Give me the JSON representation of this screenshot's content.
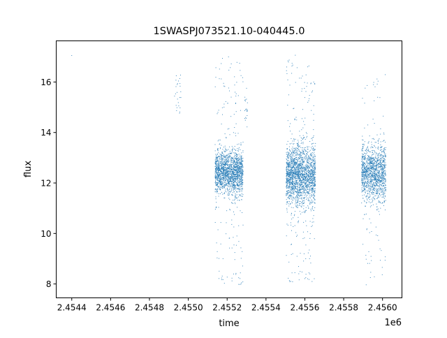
{
  "chart_data": {
    "type": "scatter",
    "title": "1SWASPJ073521.10-040445.0",
    "xlabel": "time",
    "ylabel": "flux",
    "x_offset_label": "1e6",
    "xlim": [
      2454320,
      2456100
    ],
    "ylim": [
      7.45,
      17.63
    ],
    "x_ticks": [
      2454400,
      2454600,
      2454800,
      2455000,
      2455200,
      2455400,
      2455600,
      2455800,
      2456000
    ],
    "x_tick_labels": [
      "2.4544",
      "2.4546",
      "2.4548",
      "2.4550",
      "2.4552",
      "2.4554",
      "2.4556",
      "2.4558",
      "2.4560"
    ],
    "y_ticks": [
      8,
      10,
      12,
      14,
      16
    ],
    "y_tick_labels": [
      "8",
      "10",
      "12",
      "14",
      "16"
    ],
    "grid": false,
    "legend": "none",
    "marker_color": "#1f77b4",
    "single_points": [
      {
        "x": 2454400,
        "y": 17.05
      }
    ],
    "segments": [
      {
        "x_range": [
          2454929,
          2454962
        ],
        "y_median": 15.6,
        "y_spread": 0.7,
        "n_points": 25,
        "outlier_y_range": [
          14.2,
          16.7
        ],
        "n_outliers": 0
      },
      {
        "x_range": [
          2455138,
          2455282
        ],
        "y_median": 12.4,
        "y_spread": 0.55,
        "n_points": 1600,
        "outlier_y_range": [
          7.9,
          17.1
        ],
        "n_outliers": 180
      },
      {
        "x_range": [
          2455290,
          2455305
        ],
        "y_median": 14.8,
        "y_spread": 0.8,
        "n_points": 20,
        "outlier_y_range": [
          13.0,
          16.5
        ],
        "n_outliers": 0
      },
      {
        "x_range": [
          2455504,
          2455655
        ],
        "y_median": 12.3,
        "y_spread": 0.8,
        "n_points": 1900,
        "outlier_y_range": [
          8.0,
          17.1
        ],
        "n_outliers": 200
      },
      {
        "x_range": [
          2455892,
          2456017
        ],
        "y_median": 12.4,
        "y_spread": 0.7,
        "n_points": 1300,
        "outlier_y_range": [
          7.9,
          16.3
        ],
        "n_outliers": 90
      }
    ]
  }
}
